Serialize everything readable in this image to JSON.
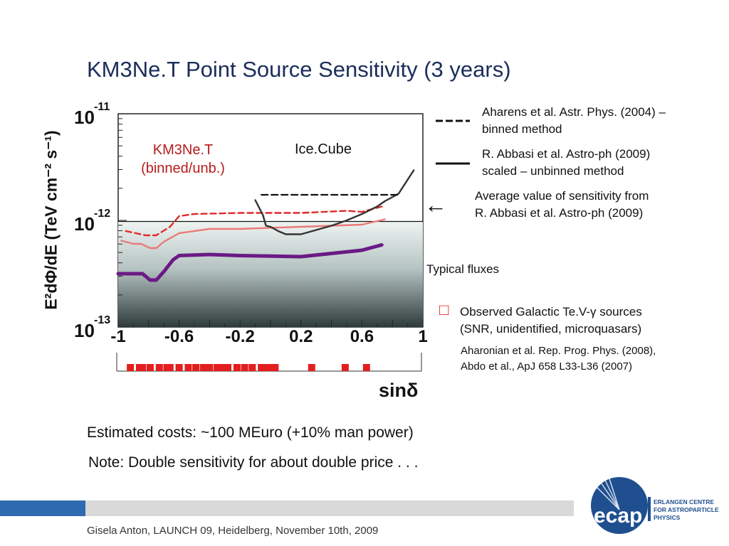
{
  "slide": {
    "title": "KM3Ne.T Point Source Sensitivity (3 years)",
    "costs": "Estimated costs: ~100 MEuro (+10% man power)",
    "note": "Note: Double sensitivity for about double price . . .",
    "footer": "Gisela Anton,   LAUNCH 09,   Heidelberg,  November 10th, 2009"
  },
  "legend": {
    "dashed_line": "Aharens et al. Astr. Phys. (2004) –",
    "dashed_line_2": "binned method",
    "solid_line": "R. Abbasi et al. Astro-ph (2009)",
    "solid_line_2": "scaled – unbinned method",
    "arrow_glyph": "←",
    "average": "Average value of sensitivity from",
    "average_2": "R. Abbasi et al. Astro-ph (2009)",
    "typical": "Typical fluxes",
    "observed_marker": "□",
    "observed": "Observed Galactic Te.V-γ  sources",
    "observed_2": "(SNR, unidentified, microquasars)",
    "refs": "Aharonian et al. Rep. Prog. Phys. (2008),",
    "refs_2": "Abdo et al., ApJ 658 L33-L36 (2007)"
  },
  "logo": {
    "name": "ecap",
    "line1": "ERLANGEN CENTRE",
    "line2": "FOR ASTROPARTICLE",
    "line3": "PHYSICS"
  },
  "colors": {
    "title": "#1b2d5a",
    "red_dashed": "#e02a2a",
    "red_solid": "#ea7a78",
    "purple": "#6a1a85",
    "icecube": "#333333",
    "source_box": "#e31e1e",
    "footer_bar": "#d9d9d9",
    "footer_accent": "#2f6bb0"
  },
  "chart_data": {
    "type": "line",
    "title": "",
    "xlabel": "sinδ",
    "ylabel": "E²dΦ/dE (TeV cm⁻² s⁻¹)",
    "xlim": [
      -1,
      1
    ],
    "ylim_log10": [
      -13,
      -11
    ],
    "y_scale": "log",
    "xticks": [
      -1,
      -0.6,
      -0.2,
      0.2,
      0.6,
      1
    ],
    "xtick_labels": [
      "-1",
      "-0.6",
      "-0.2",
      "0.2",
      "0.6",
      "1"
    ],
    "yticks": [
      {
        "base": "10",
        "exp": "-11",
        "log": -11
      },
      {
        "base": "10",
        "exp": "-12",
        "log": -12
      },
      {
        "base": "10",
        "exp": "-13",
        "log": -13
      }
    ],
    "annotations": [
      {
        "text": "KM3Ne.T",
        "text_2": "(binned/unb.)"
      },
      {
        "text": "Ice.Cube"
      }
    ],
    "average_level_log10": -12.01,
    "series": [
      {
        "name": "KM3NeT binned (dashed)",
        "style": "dashed",
        "color": "#e02a2a",
        "x": [
          -0.95,
          -0.82,
          -0.75,
          -0.66,
          -0.6,
          -0.5,
          -0.2,
          0.2,
          0.5,
          0.6,
          0.73
        ],
        "log_y": [
          -12.1,
          -12.14,
          -12.14,
          -12.06,
          -11.96,
          -11.94,
          -11.93,
          -11.93,
          -11.91,
          -11.92,
          -11.87
        ]
      },
      {
        "name": "KM3NeT unbinned (solid)",
        "style": "solid",
        "color": "#ea7a78",
        "x": [
          -0.98,
          -0.9,
          -0.85,
          -0.79,
          -0.75,
          -0.7,
          -0.6,
          -0.4,
          -0.2,
          0.2,
          0.6,
          0.75
        ],
        "log_y": [
          -12.19,
          -12.22,
          -12.22,
          -12.26,
          -12.26,
          -12.2,
          -12.12,
          -12.08,
          -12.08,
          -12.06,
          -12.04,
          -11.99
        ]
      },
      {
        "name": "Typical flux (purple)",
        "style": "solid",
        "color": "#6a1a85",
        "x": [
          -1,
          -0.84,
          -0.79,
          -0.75,
          -0.7,
          -0.64,
          -0.6,
          -0.4,
          -0.2,
          0.2,
          0.6,
          0.73
        ],
        "log_y": [
          -12.5,
          -12.5,
          -12.56,
          -12.56,
          -12.48,
          -12.37,
          -12.33,
          -12.32,
          -12.33,
          -12.34,
          -12.28,
          -12.23
        ]
      },
      {
        "name": "IceCube unbinned (solid)",
        "style": "solid",
        "color": "#333333",
        "x": [
          -0.1,
          -0.05,
          -0.03,
          0.0,
          0.05,
          0.1,
          0.2,
          0.3,
          0.4,
          0.5,
          0.6,
          0.7,
          0.75,
          0.84,
          0.94
        ],
        "log_y": [
          -11.81,
          -11.95,
          -12.05,
          -12.06,
          -12.1,
          -12.13,
          -12.13,
          -12.09,
          -12.05,
          -12.0,
          -11.94,
          -11.87,
          -11.82,
          -11.75,
          -11.53
        ]
      },
      {
        "name": "IceCube binned (dashed)",
        "style": "dashed",
        "color": "#111111",
        "x": [
          -0.06,
          0.84
        ],
        "log_y": [
          -11.76,
          -11.76
        ]
      }
    ],
    "observed_sources_x": [
      -0.92,
      -0.86,
      -0.84,
      -0.79,
      -0.73,
      -0.68,
      -0.66,
      -0.6,
      -0.54,
      -0.49,
      -0.44,
      -0.4,
      -0.35,
      -0.32,
      -0.28,
      -0.22,
      -0.17,
      -0.12,
      -0.06,
      -0.02,
      0.0,
      0.03,
      0.27,
      0.49,
      0.63
    ]
  }
}
